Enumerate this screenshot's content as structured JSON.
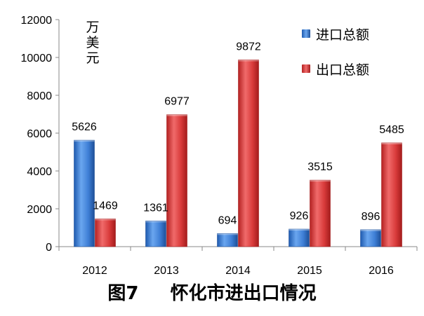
{
  "chart_data": {
    "type": "bar",
    "categories": [
      "2012",
      "2013",
      "2014",
      "2015",
      "2016"
    ],
    "series": [
      {
        "name": "进口总额",
        "values": [
          5626,
          1361,
          694,
          926,
          896
        ],
        "color": "#3f7fd6"
      },
      {
        "name": "出口总额",
        "values": [
          1469,
          6977,
          9872,
          3515,
          5485
        ],
        "color": "#d93b3b"
      }
    ],
    "ylim": [
      0,
      12000
    ],
    "yticks": [
      "0",
      "2000",
      "4000",
      "6000",
      "8000",
      "10000",
      "12000"
    ],
    "unit": "万美元",
    "legend_position": "top-right",
    "grid": false
  },
  "caption": "图7     怀化市进出口情况"
}
